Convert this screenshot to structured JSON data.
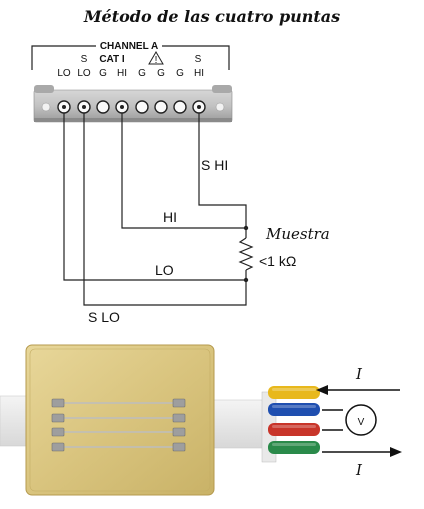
{
  "title": "Método de las cuatro puntas",
  "instrument": {
    "channel_label": "CHANNEL A",
    "category_label": "CAT I",
    "warning_symbol": "!",
    "terminal_top_labels": [
      "S",
      "",
      "",
      "",
      "",
      "",
      "S"
    ],
    "terminal_labels": [
      "LO",
      "LO",
      "G",
      "HI",
      "G",
      "G",
      "G",
      "HI"
    ]
  },
  "wires": {
    "s_hi": "S HI",
    "hi": "HI",
    "lo": "LO",
    "s_lo": "S LO"
  },
  "sample": {
    "name": "Muestra",
    "resistance": "<1 kΩ"
  },
  "photo": {
    "current_top": "I",
    "current_bottom": "I",
    "voltmeter": "V",
    "wire_colors": [
      "#e8b81c",
      "#1f4fb0",
      "#c8352a",
      "#2a8a4a"
    ]
  }
}
